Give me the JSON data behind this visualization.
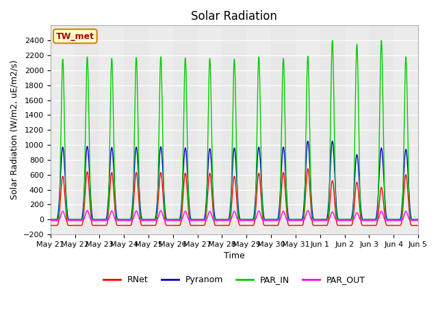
{
  "title": "Solar Radiation",
  "xlabel": "Time",
  "ylabel": "Solar Radiation (W/m2, uE/m2/s)",
  "ylim": [
    -200,
    2600
  ],
  "yticks": [
    -200,
    0,
    200,
    400,
    600,
    800,
    1000,
    1200,
    1400,
    1600,
    1800,
    2000,
    2200,
    2400
  ],
  "fig_bg_color": "#ffffff",
  "plot_bg_color": "#e8e8e8",
  "legend_labels": [
    "RNet",
    "Pyranom",
    "PAR_IN",
    "PAR_OUT"
  ],
  "legend_colors": [
    "#ff0000",
    "#0000cc",
    "#00cc00",
    "#ff00ff"
  ],
  "station_label": "TW_met",
  "station_box_facecolor": "#ffffcc",
  "station_box_edgecolor": "#cc8800",
  "x_tick_labels": [
    "May 21",
    "May 22",
    "May 23",
    "May 24",
    "May 25",
    "May 26",
    "May 27",
    "May 28",
    "May 29",
    "May 30",
    "May 31",
    "Jun 1",
    "Jun 2",
    "Jun 3",
    "Jun 4",
    "Jun 5"
  ],
  "n_days": 15,
  "title_fontsize": 12,
  "label_fontsize": 9,
  "tick_fontsize": 8,
  "legend_fontsize": 9,
  "line_width": 1.0
}
